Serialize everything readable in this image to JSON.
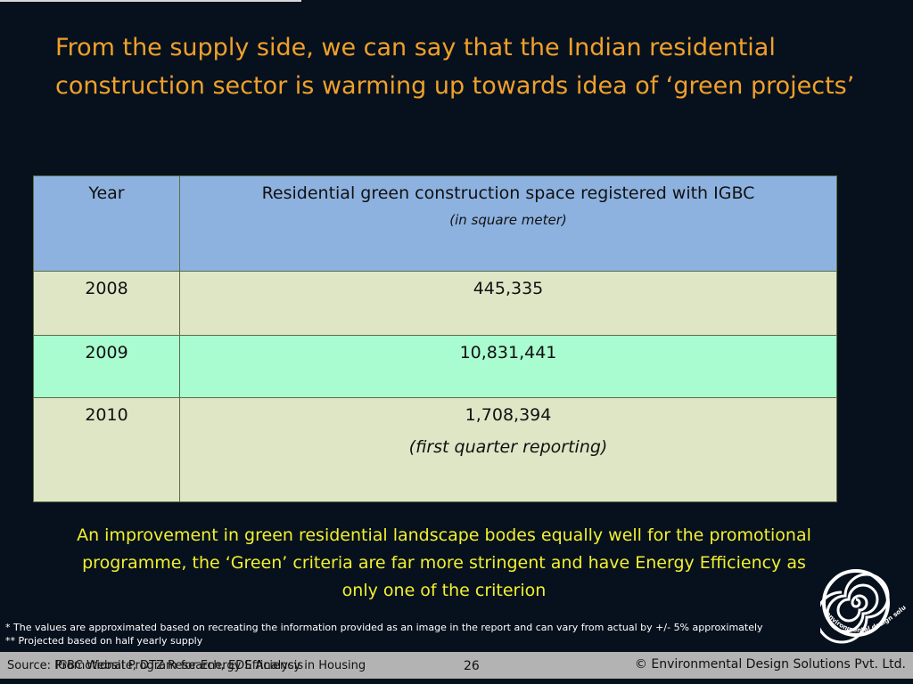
{
  "slide": {
    "title": "From the supply side, we can say that the Indian residential construction sector is warming up towards idea of ‘green projects’"
  },
  "table": {
    "header": {
      "year": "Year",
      "space": "Residential green construction space registered with IGBC",
      "unit": "(in square meter)"
    },
    "rows": [
      {
        "year": "2008",
        "value": "445,335",
        "note": ""
      },
      {
        "year": "2009",
        "value": "10,831,441",
        "note": ""
      },
      {
        "year": "2010",
        "value": "1,708,394",
        "note": "(first quarter reporting)"
      }
    ]
  },
  "conclusion": "An improvement in green residential landscape bodes equally well for the promotional programme,  the ‘Green’ criteria are far more stringent and have Energy Efficiency as only one of the criterion",
  "footnotes": {
    "approx": "* The values are approximated based on recreating the information provided as an image in the report and can vary from actual by +/- 5% approximately",
    "projected": "** Projected based on half yearly supply"
  },
  "footer": {
    "source": "Source: IGBC Website, DTZ Research, EDS Analysis",
    "programme": "Promotional Program for Energy Efficiency in Housing",
    "page_number": "26",
    "copyright": "© Environmental Design Solutions Pvt. Ltd."
  },
  "logo": {
    "text": "environmental design solutions",
    "icon": "spiral-logo-icon",
    "color": "#ffffff"
  },
  "colors": {
    "background": "#07111d",
    "title": "#f0a02a",
    "conclusion": "#f1f030",
    "header_fill": "#8db2e0",
    "row_fill": "#dfe6c6",
    "highlight_row_fill": "#a9fcd0"
  }
}
